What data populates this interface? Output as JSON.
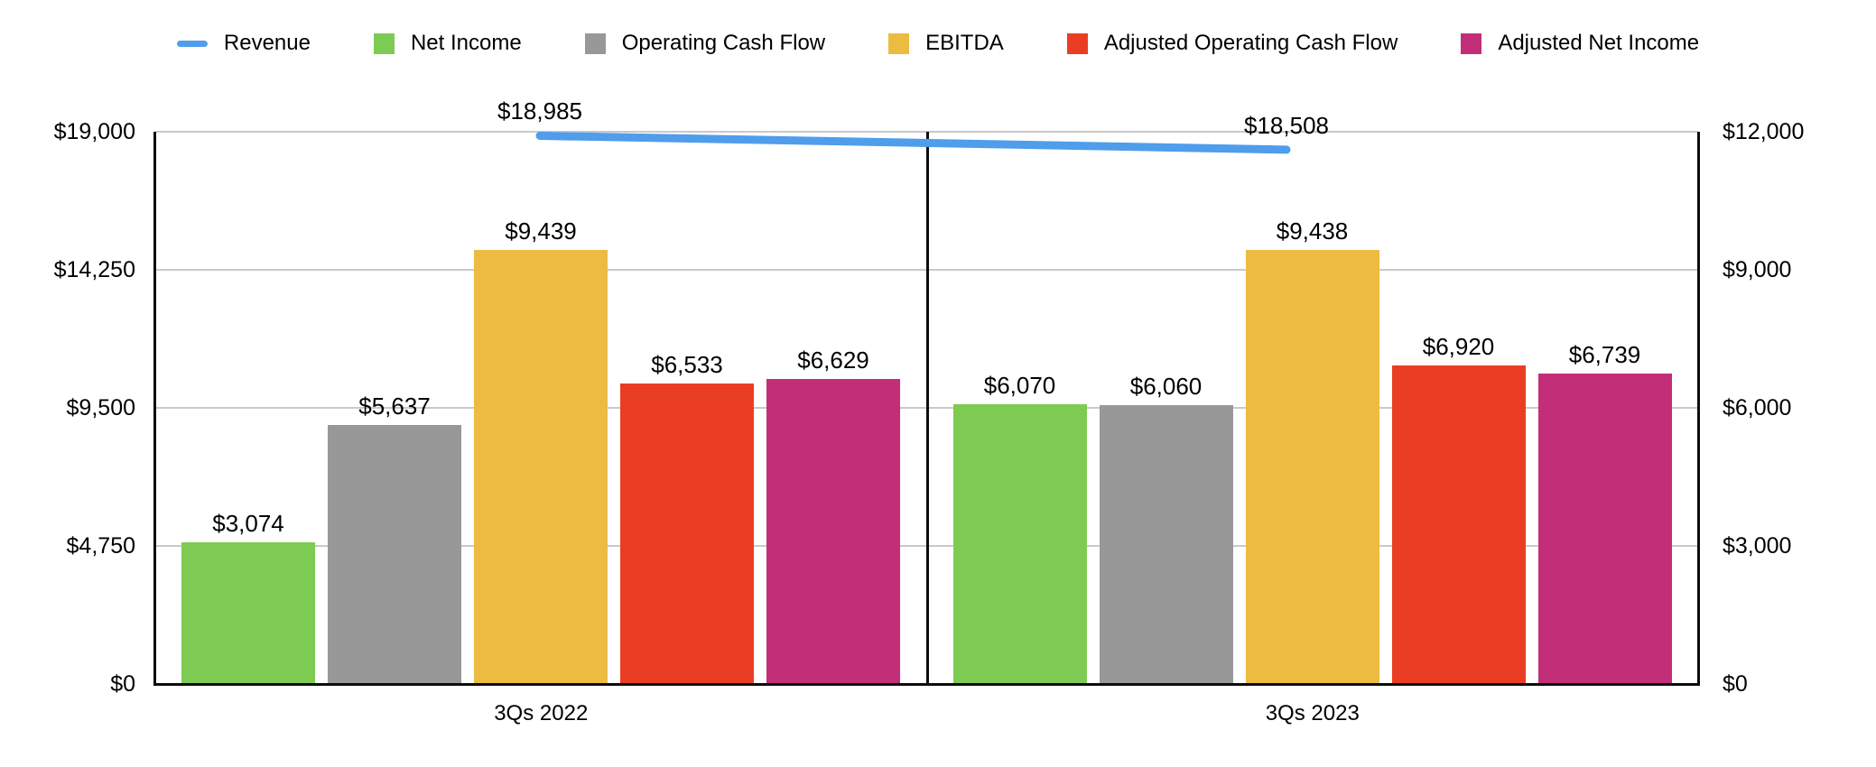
{
  "legend": {
    "items": [
      {
        "name": "Revenue",
        "swatch": "line-swatch",
        "color": "#4f9deb"
      },
      {
        "name": "Net Income",
        "swatch": "square-swatch",
        "color": "#7dcb52"
      },
      {
        "name": "Operating Cash Flow",
        "swatch": "square-swatch",
        "color": "#989898"
      },
      {
        "name": "EBITDA",
        "swatch": "square-swatch",
        "color": "#ecbb42"
      },
      {
        "name": "Adjusted Operating Cash Flow",
        "swatch": "square-swatch",
        "color": "#ea3e24"
      },
      {
        "name": "Adjusted Net Income",
        "swatch": "square-swatch",
        "color": "#c22e78"
      }
    ]
  },
  "chart_data": {
    "type": "bar",
    "subtype": "grouped-bars-with-line-overlay",
    "categories": [
      "3Qs 2022",
      "3Qs 2023"
    ],
    "series": [
      {
        "name": "Net Income",
        "axis": "right",
        "color": "#7dcb52",
        "values": [
          3074,
          6070
        ],
        "labels": [
          "$3,074",
          "$6,070"
        ]
      },
      {
        "name": "Operating Cash Flow",
        "axis": "right",
        "color": "#989898",
        "values": [
          5637,
          6060
        ],
        "labels": [
          "$5,637",
          "$6,060"
        ]
      },
      {
        "name": "EBITDA",
        "axis": "right",
        "color": "#ecbb42",
        "values": [
          9439,
          9438
        ],
        "labels": [
          "$9,439",
          "$9,438"
        ]
      },
      {
        "name": "Adjusted Operating Cash Flow",
        "axis": "right",
        "color": "#ea3e24",
        "values": [
          6533,
          6920
        ],
        "labels": [
          "$6,533",
          "$6,920"
        ]
      },
      {
        "name": "Adjusted Net Income",
        "axis": "right",
        "color": "#c22e78",
        "values": [
          6629,
          6739
        ],
        "labels": [
          "$6,629",
          "$6,739"
        ]
      }
    ],
    "line_series": {
      "name": "Revenue",
      "axis": "left",
      "color": "#4f9deb",
      "values": [
        18985,
        18508
      ],
      "labels": [
        "$18,985",
        "$18,508"
      ]
    },
    "left_axis": {
      "max": 19000,
      "min": 0,
      "ticks": [
        {
          "value": 19000,
          "label": "$19,000"
        },
        {
          "value": 14250,
          "label": "$14,250"
        },
        {
          "value": 9500,
          "label": "$9,500"
        },
        {
          "value": 4750,
          "label": "$4,750"
        },
        {
          "value": 0,
          "label": "$0"
        }
      ]
    },
    "right_axis": {
      "max": 12000,
      "min": 0,
      "ticks": [
        {
          "value": 12000,
          "label": "$12,000"
        },
        {
          "value": 9000,
          "label": "$9,000"
        },
        {
          "value": 6000,
          "label": "$6,000"
        },
        {
          "value": 3000,
          "label": "$3,000"
        },
        {
          "value": 0,
          "label": "$0"
        }
      ]
    },
    "grid": true,
    "legend_position": "top",
    "colors": {
      "gridline": "#c9c9c9",
      "axis": "#0d0d0d",
      "background": "#ffffff",
      "text": "#000000"
    }
  }
}
